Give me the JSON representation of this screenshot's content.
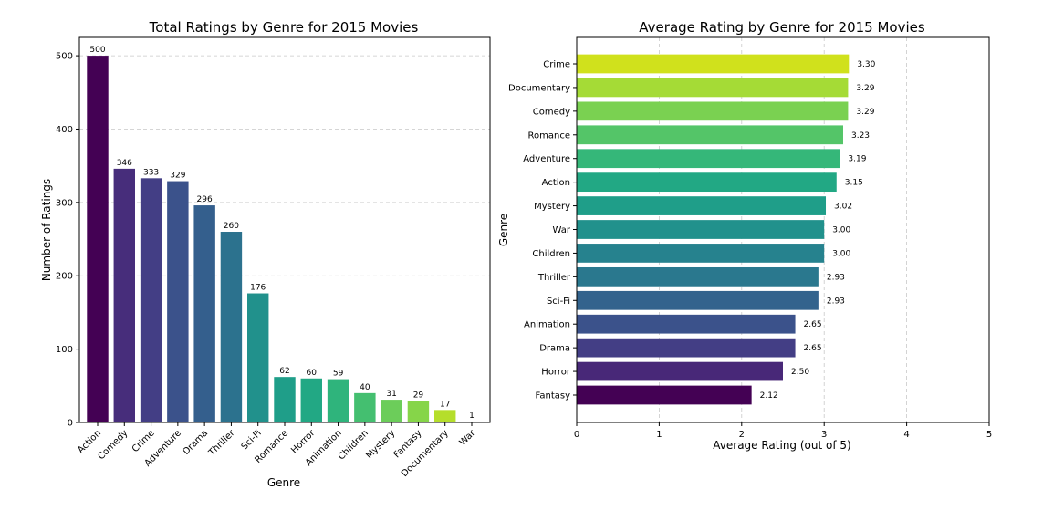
{
  "chart_data": [
    {
      "type": "bar",
      "title": "Total Ratings by Genre for 2015 Movies",
      "xlabel": "Genre",
      "ylabel": "Number of Ratings",
      "categories": [
        "Action",
        "Comedy",
        "Crime",
        "Adventure",
        "Drama",
        "Thriller",
        "Sci-Fi",
        "Romance",
        "Horror",
        "Animation",
        "Children",
        "Mystery",
        "Fantasy",
        "Documentary",
        "War"
      ],
      "values": [
        500,
        346,
        333,
        329,
        296,
        260,
        176,
        62,
        60,
        59,
        40,
        31,
        29,
        17,
        1
      ],
      "colors": [
        "#440154",
        "#472d7b",
        "#433e85",
        "#3b528b",
        "#345f8d",
        "#2c728e",
        "#21918c",
        "#1f9e89",
        "#22a884",
        "#2fb47c",
        "#44bf70",
        "#6ccd5a",
        "#86d549",
        "#b5de2b",
        "#fde725"
      ],
      "yticks": [
        0,
        100,
        200,
        300,
        400,
        500
      ],
      "ylim": [
        0,
        525
      ],
      "grid": "y-dashed"
    },
    {
      "type": "bar",
      "orientation": "horizontal",
      "title": "Average Rating by Genre for 2015 Movies",
      "xlabel": "Average Rating (out of 5)",
      "ylabel": "Genre",
      "categories": [
        "Crime",
        "Documentary",
        "Comedy",
        "Romance",
        "Adventure",
        "Action",
        "Mystery",
        "War",
        "Children",
        "Thriller",
        "Sci-Fi",
        "Animation",
        "Drama",
        "Horror",
        "Fantasy"
      ],
      "values": [
        3.3,
        3.29,
        3.29,
        3.23,
        3.19,
        3.15,
        3.02,
        3.0,
        3.0,
        2.93,
        2.93,
        2.65,
        2.65,
        2.5,
        2.12
      ],
      "value_labels": [
        "3.30",
        "3.29",
        "3.29",
        "3.23",
        "3.19",
        "3.15",
        "3.02",
        "3.00",
        "3.00",
        "2.93",
        "2.93",
        "2.65",
        "2.65",
        "2.50",
        "2.12"
      ],
      "colors": [
        "#d0e11c",
        "#a5db36",
        "#7ad151",
        "#54c568",
        "#35b779",
        "#22a884",
        "#1f9e89",
        "#21918c",
        "#26828e",
        "#2a788e",
        "#33638d",
        "#3b528b",
        "#433e85",
        "#482878",
        "#440154"
      ],
      "xticks": [
        0,
        1,
        2,
        3,
        4,
        5
      ],
      "xlim": [
        0,
        5
      ],
      "grid": "x-dashed"
    }
  ]
}
